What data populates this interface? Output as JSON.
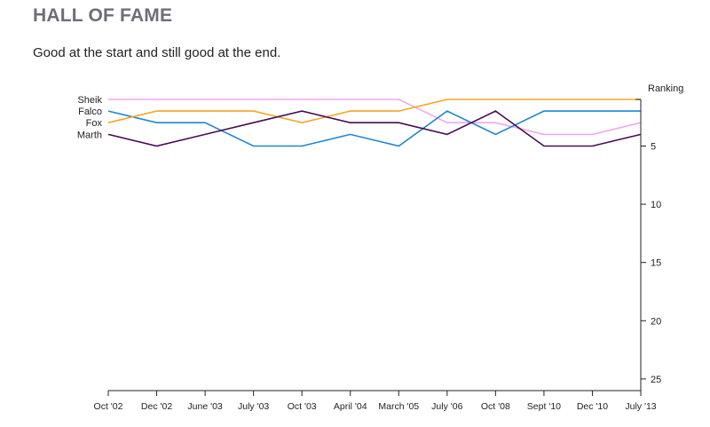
{
  "page": {
    "title": "HALL OF FAME",
    "subtitle": "Good at the start and still good at the end."
  },
  "chart_data": {
    "type": "line",
    "title": "HALL OF FAME",
    "subtitle": "Good at the start and still good at the end.",
    "ylabel": "Ranking",
    "y_axis_side": "right",
    "y_inverted": true,
    "ylim": [
      1,
      26
    ],
    "yticks": [
      5,
      10,
      15,
      20,
      25
    ],
    "categories": [
      "Oct '02",
      "Dec '02",
      "June '03",
      "July '03",
      "Oct '03",
      "April '04",
      "March '05",
      "July '06",
      "Oct '08",
      "Sept '10",
      "Dec '10",
      "July '13"
    ],
    "series": [
      {
        "name": "Sheik",
        "color": "#f0a8f0",
        "values": [
          1,
          1,
          1,
          1,
          1,
          1,
          1,
          3,
          3,
          4,
          4,
          3
        ]
      },
      {
        "name": "Falco",
        "color": "#1f86d1",
        "values": [
          2,
          3,
          3,
          5,
          5,
          4,
          5,
          2,
          4,
          2,
          2,
          2
        ]
      },
      {
        "name": "Fox",
        "color": "#f5a623",
        "values": [
          3,
          2,
          2,
          2,
          3,
          2,
          2,
          1,
          1,
          1,
          1,
          1
        ]
      },
      {
        "name": "Marth",
        "color": "#4a0a55",
        "values": [
          4,
          5,
          4,
          3,
          2,
          3,
          3,
          4,
          2,
          5,
          5,
          4
        ]
      }
    ],
    "grid": false,
    "legend": "left, series names at start of lines"
  }
}
